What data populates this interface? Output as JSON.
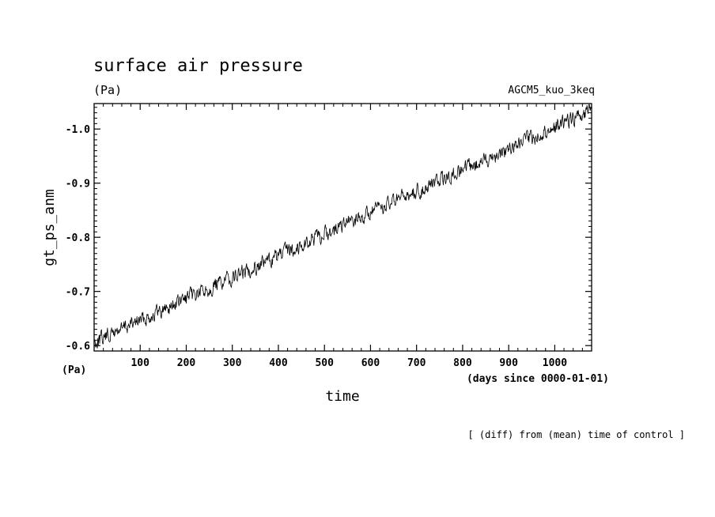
{
  "chart_data": {
    "type": "line",
    "title": "surface air pressure",
    "units": "(Pa)",
    "model": "AGCM5_kuo_3keq",
    "ylabel": "gt_ps_anm",
    "xlabel": "time",
    "x_unit_label": "(Pa)",
    "x_time_units": "(days since 0000-01-01)",
    "footnote": "[ (diff) from (mean) time of control ]",
    "xlim": [
      0,
      1080
    ],
    "ylim": [
      -0.59,
      -1.047
    ],
    "y_axis_inverted": true,
    "x_ticks": [
      100,
      200,
      300,
      400,
      500,
      600,
      700,
      800,
      900,
      1000
    ],
    "y_ticks": [
      -0.6,
      -0.7,
      -0.8,
      -0.9,
      -1.0
    ],
    "y_tick_labels": [
      "-0.6",
      "-0.7",
      "-0.8",
      "-0.9",
      "-1.0"
    ],
    "grid": false,
    "series": [
      {
        "trend_start": {
          "x": 0,
          "y": -0.607
        },
        "trend_end": {
          "x": 1080,
          "y": -1.035
        },
        "noise_amplitude": 0.012,
        "points": 1080,
        "color": "#000000"
      }
    ]
  }
}
